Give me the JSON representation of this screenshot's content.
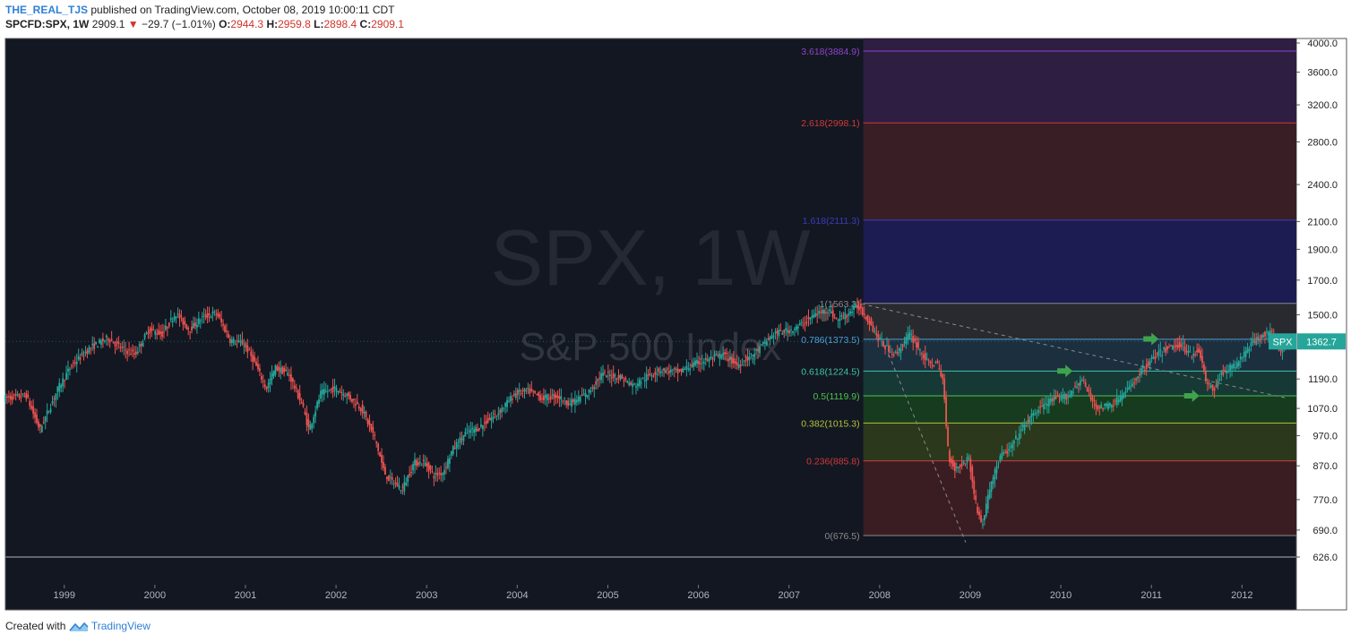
{
  "header": {
    "author": "THE_REAL_TJS",
    "published": "published on TradingView.com, October 08, 2019 10:00:11 CDT",
    "symbol": "SPCFD:SPX, 1W",
    "last": "2909.1",
    "change": "−29.7 (−1.01%)",
    "o_label": "O:",
    "o": "2944.3",
    "h_label": "H:",
    "h": "2959.8",
    "l_label": "L:",
    "l": "2898.4",
    "c_label": "C:",
    "c": "2909.1"
  },
  "footer": {
    "created": "Created with",
    "brand": "TradingView"
  },
  "colors": {
    "background": "#131722",
    "up": "#26a69a",
    "down": "#ef5350",
    "grid_text": "#222222"
  },
  "chart_data": {
    "type": "candlestick",
    "watermark": {
      "symbol": "SPX, 1W",
      "name": "S&P 500 Index"
    },
    "x_range": [
      1998.35,
      2012.6
    ],
    "y_range": [
      626.0,
      4000.0
    ],
    "y_scale": "log",
    "y_ticks": [
      4000.0,
      3600.0,
      3200.0,
      2800.0,
      2400.0,
      2100.0,
      1900.0,
      1700.0,
      1500.0,
      1190.0,
      1070.0,
      970.0,
      870.0,
      770.0,
      690.0,
      626.0
    ],
    "x_ticks": [
      "1999",
      "2000",
      "2001",
      "2002",
      "2003",
      "2004",
      "2005",
      "2006",
      "2007",
      "2008",
      "2009",
      "2010",
      "2011",
      "2012"
    ],
    "price_label": {
      "symbol": "SPX",
      "value": "1362.7"
    },
    "path": [
      [
        1998.35,
        1110
      ],
      [
        1998.6,
        1120
      ],
      [
        1998.75,
        990
      ],
      [
        1998.95,
        1150
      ],
      [
        1999.1,
        1250
      ],
      [
        1999.3,
        1330
      ],
      [
        1999.5,
        1380
      ],
      [
        1999.65,
        1330
      ],
      [
        1999.8,
        1300
      ],
      [
        1999.95,
        1420
      ],
      [
        2000.1,
        1400
      ],
      [
        2000.25,
        1510
      ],
      [
        2000.4,
        1420
      ],
      [
        2000.55,
        1490
      ],
      [
        2000.7,
        1510
      ],
      [
        2000.85,
        1370
      ],
      [
        2001.0,
        1350
      ],
      [
        2001.1,
        1280
      ],
      [
        2001.25,
        1150
      ],
      [
        2001.35,
        1240
      ],
      [
        2001.5,
        1210
      ],
      [
        2001.65,
        1080
      ],
      [
        2001.72,
        990
      ],
      [
        2001.85,
        1130
      ],
      [
        2002.0,
        1150
      ],
      [
        2002.15,
        1120
      ],
      [
        2002.3,
        1070
      ],
      [
        2002.45,
        960
      ],
      [
        2002.55,
        850
      ],
      [
        2002.6,
        830
      ],
      [
        2002.75,
        800
      ],
      [
        2002.88,
        880
      ],
      [
        2003.0,
        880
      ],
      [
        2003.1,
        840
      ],
      [
        2003.2,
        850
      ],
      [
        2003.3,
        920
      ],
      [
        2003.45,
        980
      ],
      [
        2003.6,
        1000
      ],
      [
        2003.8,
        1050
      ],
      [
        2004.0,
        1130
      ],
      [
        2004.15,
        1140
      ],
      [
        2004.3,
        1110
      ],
      [
        2004.45,
        1120
      ],
      [
        2004.6,
        1090
      ],
      [
        2004.8,
        1130
      ],
      [
        2004.95,
        1210
      ],
      [
        2005.15,
        1200
      ],
      [
        2005.3,
        1160
      ],
      [
        2005.45,
        1200
      ],
      [
        2005.6,
        1230
      ],
      [
        2005.8,
        1220
      ],
      [
        2006.0,
        1260
      ],
      [
        2006.3,
        1300
      ],
      [
        2006.45,
        1250
      ],
      [
        2006.65,
        1310
      ],
      [
        2006.85,
        1400
      ],
      [
        2007.1,
        1430
      ],
      [
        2007.3,
        1500
      ],
      [
        2007.45,
        1530
      ],
      [
        2007.55,
        1470
      ],
      [
        2007.65,
        1500
      ],
      [
        2007.78,
        1550
      ],
      [
        2007.9,
        1470
      ],
      [
        2008.0,
        1380
      ],
      [
        2008.1,
        1330
      ],
      [
        2008.2,
        1300
      ],
      [
        2008.35,
        1400
      ],
      [
        2008.45,
        1330
      ],
      [
        2008.55,
        1260
      ],
      [
        2008.65,
        1260
      ],
      [
        2008.72,
        1180
      ],
      [
        2008.78,
        900
      ],
      [
        2008.85,
        860
      ],
      [
        2008.95,
        880
      ],
      [
        2009.0,
        900
      ],
      [
        2009.08,
        760
      ],
      [
        2009.15,
        700
      ],
      [
        2009.25,
        820
      ],
      [
        2009.35,
        900
      ],
      [
        2009.45,
        920
      ],
      [
        2009.6,
        1000
      ],
      [
        2009.75,
        1060
      ],
      [
        2009.9,
        1100
      ],
      [
        2010.1,
        1120
      ],
      [
        2010.25,
        1190
      ],
      [
        2010.35,
        1110
      ],
      [
        2010.45,
        1070
      ],
      [
        2010.6,
        1090
      ],
      [
        2010.75,
        1140
      ],
      [
        2010.9,
        1220
      ],
      [
        2011.05,
        1290
      ],
      [
        2011.2,
        1330
      ],
      [
        2011.35,
        1350
      ],
      [
        2011.45,
        1300
      ],
      [
        2011.55,
        1320
      ],
      [
        2011.62,
        1180
      ],
      [
        2011.7,
        1140
      ],
      [
        2011.8,
        1220
      ],
      [
        2011.95,
        1250
      ],
      [
        2012.1,
        1340
      ],
      [
        2012.25,
        1400
      ],
      [
        2012.35,
        1400
      ],
      [
        2012.45,
        1320
      ],
      [
        2012.55,
        1362.7
      ]
    ],
    "fibonacci": {
      "x_start": 2007.82,
      "levels": [
        {
          "label": "3.618(3884.9)",
          "ratio": 3.618,
          "value": 3884.9,
          "color": "#8e44c9"
        },
        {
          "label": "2.618(2998.1)",
          "ratio": 2.618,
          "value": 2998.1,
          "color": "#d03a3a"
        },
        {
          "label": "1.618(2111.3)",
          "ratio": 1.618,
          "value": 2111.3,
          "color": "#3b3bb8"
        },
        {
          "label": "1(1563.3)",
          "ratio": 1.0,
          "value": 1563.3,
          "color": "#8a8a8a"
        },
        {
          "label": "0.786(1373.5)",
          "ratio": 0.786,
          "value": 1373.5,
          "color": "#4aa0d8"
        },
        {
          "label": "0.618(1224.5)",
          "ratio": 0.618,
          "value": 1224.5,
          "color": "#3ec6a3"
        },
        {
          "label": "0.5(1119.9)",
          "ratio": 0.5,
          "value": 1119.9,
          "color": "#4cc34c"
        },
        {
          "label": "0.382(1015.3)",
          "ratio": 0.382,
          "value": 1015.3,
          "color": "#b3c23a"
        },
        {
          "label": "0.236(885.8)",
          "ratio": 0.236,
          "value": 885.8,
          "color": "#d03a3a"
        },
        {
          "label": "0(676.5)",
          "ratio": 0.0,
          "value": 676.5,
          "color": "#8a8a8a"
        }
      ],
      "zone_colors": [
        "#2e1f45",
        "#3b1f26",
        "#1c1c55",
        "#2a2b30",
        "#1c3040",
        "#163b38",
        "#163d20",
        "#2c3a1c",
        "#3b1e24"
      ]
    },
    "trendlines": [
      {
        "from": [
          2007.8,
          1560
        ],
        "to": [
          2012.5,
          1110
        ],
        "color": "#8a8a8a"
      },
      {
        "from": [
          2008.1,
          1300
        ],
        "to": [
          2008.95,
          660
        ],
        "color": "#8a8a8a"
      }
    ],
    "arrows": [
      {
        "x": 2011.0,
        "y": 1375,
        "color": "#3fa34d"
      },
      {
        "x": 2010.05,
        "y": 1225,
        "color": "#3fa34d"
      },
      {
        "x": 2011.45,
        "y": 1120,
        "color": "#3fa34d"
      }
    ]
  }
}
